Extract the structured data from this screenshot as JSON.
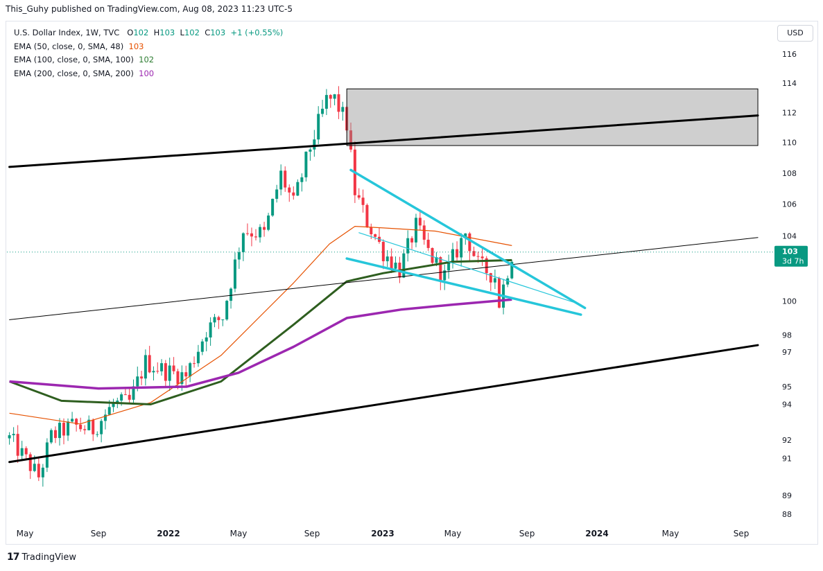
{
  "header": {
    "publisher": "This_Guhy published on TradingView.com, Aug 08, 2023 11:23 UTC-5"
  },
  "legend": {
    "symbol": "U.S. Dollar Index, 1W, TVC",
    "o_label": "O",
    "o_value": "102",
    "h_label": "H",
    "h_value": "103",
    "l_label": "L",
    "l_value": "102",
    "c_label": "C",
    "c_value": "103",
    "change": "+1 (+0.55%)",
    "ema50_label": "EMA (50, close, 0, SMA, 48)",
    "ema50_value": "103",
    "ema100_label": "EMA (100, close, 0, SMA, 100)",
    "ema100_value": "102",
    "ema200_label": "EMA (200, close, 0, SMA, 200)",
    "ema200_value": "100"
  },
  "currency_button": "USD",
  "price_tag": {
    "price": "103",
    "countdown": "3d 7h"
  },
  "footer": {
    "brand": "TradingView",
    "logo_glyph": "17"
  },
  "colors": {
    "up": "#089981",
    "down": "#f23645",
    "ema50": "#e65100",
    "ema100": "#2e5e1f",
    "ema200": "#9c27b0",
    "cyan": "#26c6da",
    "tag": "#089981"
  },
  "chart_data": {
    "type": "candlestick",
    "title": "U.S. Dollar Index, 1W, TVC",
    "y_axis": {
      "scale": "log",
      "range": [
        87.5,
        117.5
      ],
      "tick_labels": [
        "116",
        "114",
        "112",
        "110",
        "108",
        "106",
        "104",
        "100",
        "98",
        "97",
        "95",
        "94",
        "92",
        "91",
        "89",
        "88"
      ],
      "tick_values": [
        116,
        114,
        112,
        110,
        108,
        106,
        104,
        100,
        98,
        97,
        95,
        94,
        92,
        91,
        89,
        88
      ]
    },
    "x_axis": {
      "tick_labels": [
        "May",
        "Sep",
        "2022",
        "May",
        "Sep",
        "2023",
        "May",
        "Sep",
        "2024",
        "May",
        "Sep"
      ],
      "tick_dates": [
        "2021-05",
        "2021-09",
        "2022-01",
        "2022-05",
        "2022-09",
        "2023-01",
        "2023-05",
        "2023-09",
        "2024-01",
        "2024-05",
        "2024-09"
      ],
      "range": [
        "2021-04",
        "2024-10"
      ]
    },
    "close_path_points": [
      [
        "2021-04-05",
        92.1
      ],
      [
        "2021-05-24",
        90.0
      ],
      [
        "2021-06-14",
        92.2
      ],
      [
        "2021-07-19",
        92.8
      ],
      [
        "2021-08-23",
        92.6
      ],
      [
        "2021-09-27",
        94.0
      ],
      [
        "2021-10-25",
        94.1
      ],
      [
        "2021-11-22",
        96.4
      ],
      [
        "2021-12-27",
        95.9
      ],
      [
        "2022-01-31",
        95.6
      ],
      [
        "2022-03-07",
        98.3
      ],
      [
        "2022-04-04",
        99.1
      ],
      [
        "2022-05-09",
        104.4
      ],
      [
        "2022-06-13",
        104.1
      ],
      [
        "2022-07-11",
        107.9
      ],
      [
        "2022-08-01",
        106.0
      ],
      [
        "2022-08-29",
        109.7
      ],
      [
        "2022-09-26",
        112.8
      ],
      [
        "2022-10-10",
        112.9
      ],
      [
        "2022-10-31",
        111.2
      ],
      [
        "2022-11-14",
        106.8
      ],
      [
        "2022-12-05",
        104.9
      ],
      [
        "2023-01-02",
        103.0
      ],
      [
        "2023-01-30",
        101.9
      ],
      [
        "2023-02-27",
        104.6
      ],
      [
        "2023-03-20",
        103.0
      ],
      [
        "2023-04-17",
        101.5
      ],
      [
        "2023-05-22",
        104.2
      ],
      [
        "2023-06-12",
        102.2
      ],
      [
        "2023-07-10",
        101.5
      ],
      [
        "2023-07-17",
        99.9
      ],
      [
        "2023-08-07",
        102.9
      ]
    ],
    "ema_series": [
      {
        "name": "EMA 50",
        "last": 103,
        "points": [
          [
            "2021-04-05",
            93.5
          ],
          [
            "2021-08-01",
            92.9
          ],
          [
            "2021-12-01",
            94.1
          ],
          [
            "2022-04-01",
            96.8
          ],
          [
            "2022-08-01",
            101.1
          ],
          [
            "2022-10-01",
            103.5
          ],
          [
            "2022-11-14",
            104.6
          ],
          [
            "2023-01-02",
            104.5
          ],
          [
            "2023-04-01",
            104.3
          ],
          [
            "2023-08-07",
            103.4
          ]
        ]
      },
      {
        "name": "EMA 100",
        "last": 102,
        "points": [
          [
            "2021-04-05",
            95.3
          ],
          [
            "2021-07-01",
            94.2
          ],
          [
            "2021-12-01",
            94.0
          ],
          [
            "2022-04-01",
            95.3
          ],
          [
            "2022-08-01",
            98.6
          ],
          [
            "2022-10-31",
            101.2
          ],
          [
            "2023-01-02",
            101.7
          ],
          [
            "2023-05-01",
            102.4
          ],
          [
            "2023-08-07",
            102.5
          ]
        ]
      },
      {
        "name": "EMA 200",
        "last": 100,
        "points": [
          [
            "2021-04-05",
            95.3
          ],
          [
            "2021-09-01",
            94.9
          ],
          [
            "2022-02-01",
            95.0
          ],
          [
            "2022-05-01",
            95.8
          ],
          [
            "2022-08-01",
            97.3
          ],
          [
            "2022-10-31",
            99.0
          ],
          [
            "2023-02-01",
            99.5
          ],
          [
            "2023-05-01",
            99.8
          ],
          [
            "2023-08-07",
            100.1
          ]
        ]
      }
    ],
    "drawings": [
      {
        "type": "trendline",
        "from": [
          "2021-04-05",
          108.4
        ],
        "to": [
          "2024-09-30",
          111.8
        ]
      },
      {
        "type": "trendline",
        "from": [
          "2021-04-05",
          90.8
        ],
        "to": [
          "2024-09-30",
          97.4
        ]
      },
      {
        "type": "trendline",
        "from": [
          "2021-04-05",
          98.9
        ],
        "to": [
          "2024-09-30",
          103.9
        ]
      },
      {
        "type": "wedge_upper",
        "from": [
          "2022-11-07",
          108.2
        ],
        "to": [
          "2023-12-11",
          99.6
        ]
      },
      {
        "type": "wedge_lower",
        "from": [
          "2022-10-31",
          102.6
        ],
        "to": [
          "2023-12-04",
          99.2
        ]
      },
      {
        "type": "wedge_mid",
        "from": [
          "2022-11-21",
          104.2
        ],
        "to": [
          "2023-12-04",
          99.8
        ]
      },
      {
        "type": "rectangle",
        "from": [
          "2022-10-31",
          113.6
        ],
        "to": [
          "2024-09-30",
          109.8
        ]
      }
    ],
    "last_price": 103
  }
}
